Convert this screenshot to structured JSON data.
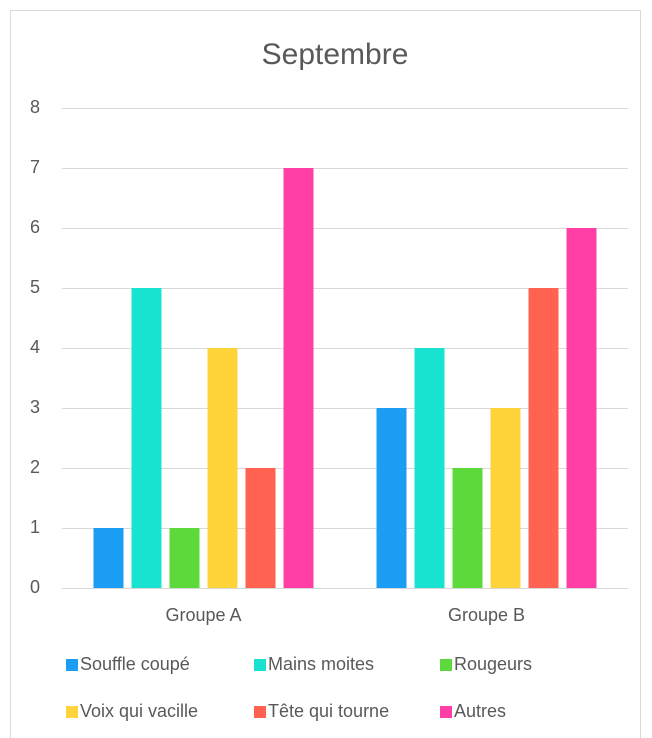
{
  "chart_data": {
    "type": "bar",
    "title": "Septembre",
    "categories": [
      "Groupe A",
      "Groupe B"
    ],
    "series": [
      {
        "name": "Souffle coupé",
        "color": "#1a9df3",
        "values": [
          1,
          3
        ]
      },
      {
        "name": "Mains moites",
        "color": "#18e3d0",
        "values": [
          5,
          4
        ]
      },
      {
        "name": "Rougeurs",
        "color": "#5ed93b",
        "values": [
          1,
          2
        ]
      },
      {
        "name": "Voix qui vacille",
        "color": "#ffd43b",
        "values": [
          4,
          3
        ]
      },
      {
        "name": "Tête qui tourne",
        "color": "#ff6250",
        "values": [
          2,
          5
        ]
      },
      {
        "name": "Autres",
        "color": "#ff3fa6",
        "values": [
          7,
          6
        ]
      }
    ],
    "ylim": [
      0,
      8
    ],
    "yticks": [
      0,
      1,
      2,
      3,
      4,
      5,
      6,
      7,
      8
    ],
    "grid": true,
    "legend": "bottom"
  }
}
